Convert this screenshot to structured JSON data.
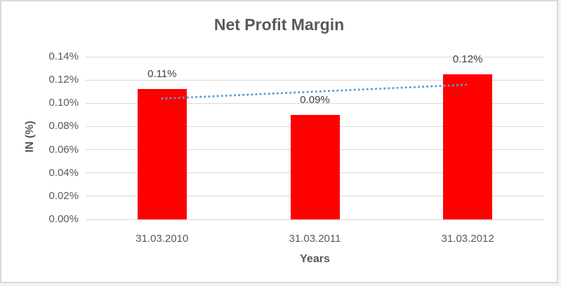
{
  "chart_data": {
    "type": "bar",
    "title": "Net Profit Margin",
    "xlabel": "Years",
    "ylabel": "IN (%)",
    "categories": [
      "31.03.2010",
      "31.03.2011",
      "31.03.2012"
    ],
    "values": [
      0.11,
      0.09,
      0.12
    ],
    "data_labels": [
      "0.11%",
      "0.09%",
      "0.12%"
    ],
    "plotted_values": [
      0.112,
      0.09,
      0.125
    ],
    "ylim": [
      0,
      0.14
    ],
    "ytick_step": 0.02,
    "ytick_labels": [
      "0.00%",
      "0.02%",
      "0.04%",
      "0.06%",
      "0.08%",
      "0.10%",
      "0.12%",
      "0.14%"
    ],
    "grid": true,
    "legend": false,
    "bar_color": "#ff0000",
    "trendline": {
      "type": "linear",
      "style": "dotted",
      "color": "#5b9bd5",
      "start_value": 0.104,
      "end_value": 0.116
    },
    "colors": {
      "text": "#595959",
      "gridline": "#d9d9d9",
      "background": "#ffffff",
      "frame_border": "#d9d9d9"
    }
  }
}
